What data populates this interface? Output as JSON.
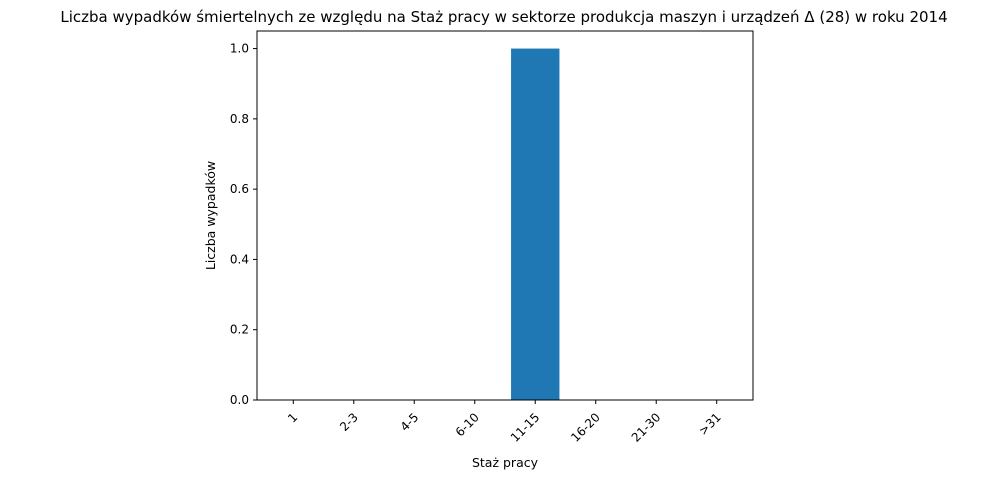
{
  "chart_data": {
    "type": "bar",
    "title": "Liczba wypadków śmiertelnych ze względu na Staż pracy w sektorze produkcja maszyn i urządzeń Δ (28) w roku 2014",
    "xlabel": "Staż pracy",
    "ylabel": "Liczba wypadków",
    "categories": [
      "1",
      "2-3",
      "4-5",
      "6-10",
      "11-15",
      "16-20",
      "21-30",
      ">31"
    ],
    "values": [
      0,
      0,
      0,
      0,
      1,
      0,
      0,
      0
    ],
    "ylim": [
      0,
      1.05
    ],
    "yticks": [
      "0.0",
      "0.2",
      "0.4",
      "0.6",
      "0.8",
      "1.0"
    ],
    "bar_color": "#1f77b4",
    "grid": false,
    "legend": "none"
  }
}
